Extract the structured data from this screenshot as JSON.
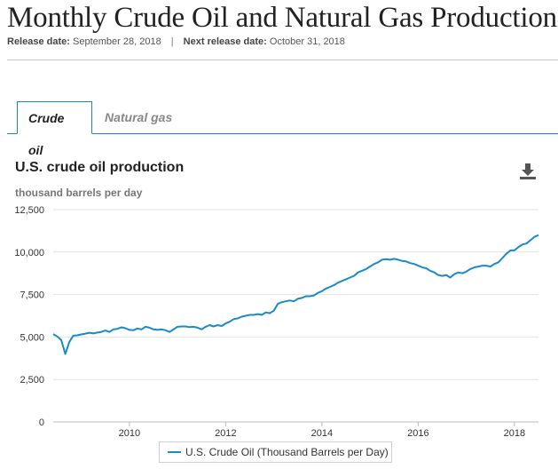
{
  "page": {
    "title": "Monthly Crude Oil and Natural Gas Production",
    "release_label": "Release date:",
    "release_date": "September 28, 2018",
    "separator": "|",
    "next_release_label": "Next release date:",
    "next_release_date": "October 31, 2018"
  },
  "tabs": [
    {
      "label": "Crude oil",
      "active": true
    },
    {
      "label": "Natural gas",
      "active": false
    }
  ],
  "icons": {
    "download": "download-icon"
  },
  "colors": {
    "series": "#1a8bc8",
    "tab_border": "#1a86b6"
  },
  "chart_data": {
    "type": "line",
    "title": "U.S. crude oil production",
    "ylabel": "thousand barrels per day",
    "xlabel": "",
    "ylim": [
      0,
      12500
    ],
    "yticks": [
      0,
      2500,
      5000,
      7500,
      10000,
      12500
    ],
    "ytick_labels": [
      "0",
      "2,500",
      "5,000",
      "7,500",
      "10,000",
      "12,500"
    ],
    "xticks": [
      2010,
      2012,
      2014,
      2016,
      2018
    ],
    "xtick_labels": [
      "2010",
      "2012",
      "2014",
      "2016",
      "2018"
    ],
    "xlim": [
      "2008-06",
      "2018-07"
    ],
    "grid": "horizontal",
    "legend_position": "bottom-center",
    "series": [
      {
        "name": "U.S. Crude Oil (Thousand Barrels per Day)",
        "x": [
          "2008-06",
          "2008-07",
          "2008-08",
          "2008-09",
          "2008-10",
          "2008-11",
          "2008-12",
          "2009-01",
          "2009-02",
          "2009-03",
          "2009-04",
          "2009-05",
          "2009-06",
          "2009-07",
          "2009-08",
          "2009-09",
          "2009-10",
          "2009-11",
          "2009-12",
          "2010-01",
          "2010-02",
          "2010-03",
          "2010-04",
          "2010-05",
          "2010-06",
          "2010-07",
          "2010-08",
          "2010-09",
          "2010-10",
          "2010-11",
          "2010-12",
          "2011-01",
          "2011-02",
          "2011-03",
          "2011-04",
          "2011-05",
          "2011-06",
          "2011-07",
          "2011-08",
          "2011-09",
          "2011-10",
          "2011-11",
          "2011-12",
          "2012-01",
          "2012-02",
          "2012-03",
          "2012-04",
          "2012-05",
          "2012-06",
          "2012-07",
          "2012-08",
          "2012-09",
          "2012-10",
          "2012-11",
          "2012-12",
          "2013-01",
          "2013-02",
          "2013-03",
          "2013-04",
          "2013-05",
          "2013-06",
          "2013-07",
          "2013-08",
          "2013-09",
          "2013-10",
          "2013-11",
          "2013-12",
          "2014-01",
          "2014-02",
          "2014-03",
          "2014-04",
          "2014-05",
          "2014-06",
          "2014-07",
          "2014-08",
          "2014-09",
          "2014-10",
          "2014-11",
          "2014-12",
          "2015-01",
          "2015-02",
          "2015-03",
          "2015-04",
          "2015-05",
          "2015-06",
          "2015-07",
          "2015-08",
          "2015-09",
          "2015-10",
          "2015-11",
          "2015-12",
          "2016-01",
          "2016-02",
          "2016-03",
          "2016-04",
          "2016-05",
          "2016-06",
          "2016-07",
          "2016-08",
          "2016-09",
          "2016-10",
          "2016-11",
          "2016-12",
          "2017-01",
          "2017-02",
          "2017-03",
          "2017-04",
          "2017-05",
          "2017-06",
          "2017-07",
          "2017-08",
          "2017-09",
          "2017-10",
          "2017-11",
          "2017-12",
          "2018-01",
          "2018-02",
          "2018-03",
          "2018-04",
          "2018-05",
          "2018-06",
          "2018-07"
        ],
        "values": [
          5170,
          5030,
          4830,
          4000,
          4700,
          5080,
          5100,
          5150,
          5200,
          5250,
          5210,
          5260,
          5300,
          5380,
          5300,
          5450,
          5480,
          5570,
          5520,
          5420,
          5400,
          5500,
          5450,
          5600,
          5550,
          5450,
          5420,
          5450,
          5400,
          5300,
          5450,
          5600,
          5620,
          5620,
          5580,
          5600,
          5550,
          5450,
          5600,
          5700,
          5620,
          5700,
          5650,
          5800,
          5900,
          6050,
          6100,
          6200,
          6250,
          6300,
          6300,
          6350,
          6300,
          6450,
          6400,
          6550,
          6950,
          7050,
          7100,
          7150,
          7100,
          7250,
          7300,
          7400,
          7400,
          7450,
          7600,
          7700,
          7850,
          7950,
          8050,
          8200,
          8300,
          8400,
          8500,
          8600,
          8800,
          8900,
          9000,
          9150,
          9300,
          9400,
          9550,
          9580,
          9550,
          9600,
          9550,
          9480,
          9450,
          9350,
          9300,
          9200,
          9100,
          9050,
          8900,
          8800,
          8650,
          8600,
          8650,
          8500,
          8700,
          8800,
          8750,
          8850,
          9000,
          9100,
          9150,
          9200,
          9200,
          9150,
          9300,
          9400,
          9650,
          9900,
          10100,
          10100,
          10300,
          10450,
          10500,
          10700,
          10900,
          11000
        ]
      }
    ]
  }
}
